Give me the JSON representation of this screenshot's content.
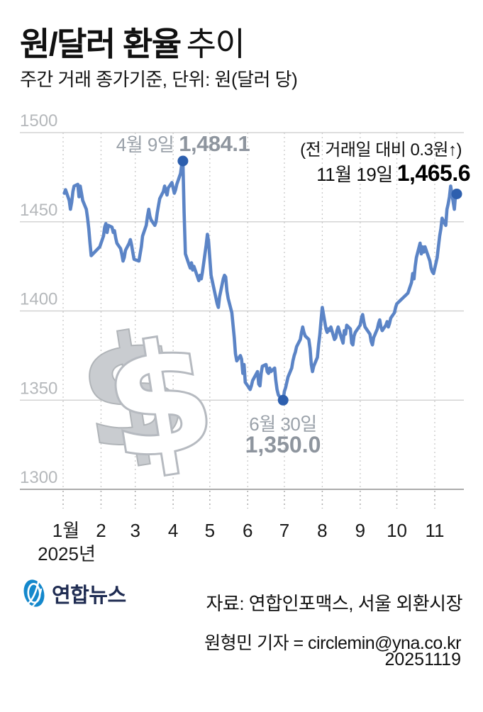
{
  "header": {
    "title_bold": "원/달러 환율",
    "title_light": "추이",
    "subtitle": "주간 거래 종가기준, 단위: 원(달러 당)"
  },
  "chart": {
    "annotations": {
      "peak_date": "4월 9일",
      "peak_value": "1,484.1",
      "prev_day_note": "(전 거래일 대비 0.3원↑)",
      "latest_date": "11월 19일",
      "latest_value": "1,465.6",
      "min_date": "6월 30일",
      "min_value": "1,350.0"
    },
    "watermark_symbol": "$",
    "colors": {
      "line": "#5b84c6",
      "marker": "#2d5fae",
      "grid": "#cbcbcb",
      "bottom_axis": "#8f8f8f",
      "gray_text": "#969da6",
      "y_label": "#b5b8bb",
      "logo_blue": "#1488cc",
      "logo_navy": "#1f2c52"
    }
  },
  "chart_data": {
    "type": "line",
    "title": "원/달러 환율 추이",
    "subtitle": "주간 거래 종가기준, 단위: 원(달러 당)",
    "x_unit": "day_of_year_2025",
    "x_tick_labels": [
      "1월",
      "2",
      "3",
      "4",
      "5",
      "6",
      "7",
      "8",
      "9",
      "10",
      "11"
    ],
    "year_label": "2025년",
    "y_ticks": [
      1500,
      1450,
      1400,
      1350,
      1300
    ],
    "ylim": [
      1300,
      1500
    ],
    "grid": true,
    "points": [
      [
        2,
        1466
      ],
      [
        3,
        1468
      ],
      [
        6,
        1462
      ],
      [
        7,
        1457
      ],
      [
        8,
        1461
      ],
      [
        9,
        1467
      ],
      [
        10,
        1470
      ],
      [
        13,
        1471
      ],
      [
        14,
        1464
      ],
      [
        15,
        1470
      ],
      [
        16,
        1466
      ],
      [
        17,
        1462
      ],
      [
        20,
        1457
      ],
      [
        21,
        1452
      ],
      [
        22,
        1446
      ],
      [
        23,
        1438
      ],
      [
        24,
        1431
      ],
      [
        31,
        1436
      ],
      [
        34,
        1442
      ],
      [
        35,
        1447
      ],
      [
        36,
        1449
      ],
      [
        37,
        1444
      ],
      [
        38,
        1448
      ],
      [
        41,
        1447
      ],
      [
        42,
        1444
      ],
      [
        43,
        1445
      ],
      [
        44,
        1441
      ],
      [
        45,
        1438
      ],
      [
        48,
        1435
      ],
      [
        49,
        1432
      ],
      [
        50,
        1428
      ],
      [
        51,
        1430
      ],
      [
        52,
        1434
      ],
      [
        55,
        1438
      ],
      [
        56,
        1440
      ],
      [
        57,
        1437
      ],
      [
        58,
        1433
      ],
      [
        59,
        1429
      ],
      [
        63,
        1428
      ],
      [
        64,
        1432
      ],
      [
        65,
        1436
      ],
      [
        66,
        1442
      ],
      [
        69,
        1448
      ],
      [
        70,
        1453
      ],
      [
        71,
        1457
      ],
      [
        72,
        1453
      ],
      [
        73,
        1451
      ],
      [
        76,
        1448
      ],
      [
        77,
        1450
      ],
      [
        78,
        1455
      ],
      [
        79,
        1459
      ],
      [
        80,
        1463
      ],
      [
        83,
        1467
      ],
      [
        84,
        1470
      ],
      [
        85,
        1467
      ],
      [
        86,
        1465
      ],
      [
        87,
        1469
      ],
      [
        90,
        1472
      ],
      [
        91,
        1469
      ],
      [
        92,
        1466
      ],
      [
        93,
        1468
      ],
      [
        94,
        1471
      ],
      [
        97,
        1477
      ],
      [
        98,
        1482
      ],
      [
        99,
        1484.1
      ],
      [
        100,
        1455
      ],
      [
        101,
        1432
      ],
      [
        104,
        1426
      ],
      [
        105,
        1424
      ],
      [
        106,
        1427
      ],
      [
        107,
        1423
      ],
      [
        108,
        1425
      ],
      [
        111,
        1419
      ],
      [
        112,
        1417
      ],
      [
        113,
        1420
      ],
      [
        114,
        1418
      ],
      [
        115,
        1422
      ],
      [
        118,
        1437
      ],
      [
        119,
        1443
      ],
      [
        120,
        1439
      ],
      [
        122,
        1420
      ],
      [
        127,
        1404
      ],
      [
        128,
        1402
      ],
      [
        129,
        1408
      ],
      [
        132,
        1418
      ],
      [
        133,
        1420
      ],
      [
        134,
        1419
      ],
      [
        135,
        1411
      ],
      [
        136,
        1407
      ],
      [
        139,
        1399
      ],
      [
        140,
        1392
      ],
      [
        141,
        1385
      ],
      [
        142,
        1376
      ],
      [
        143,
        1372
      ],
      [
        146,
        1375
      ],
      [
        147,
        1373
      ],
      [
        148,
        1365
      ],
      [
        149,
        1370
      ],
      [
        150,
        1360
      ],
      [
        153,
        1357
      ],
      [
        154,
        1356
      ],
      [
        155,
        1358
      ],
      [
        156,
        1361
      ],
      [
        160,
        1366
      ],
      [
        161,
        1359
      ],
      [
        162,
        1358
      ],
      [
        163,
        1365
      ],
      [
        164,
        1369
      ],
      [
        167,
        1370
      ],
      [
        168,
        1366
      ],
      [
        169,
        1365
      ],
      [
        170,
        1368
      ],
      [
        171,
        1366
      ],
      [
        174,
        1368
      ],
      [
        175,
        1361
      ],
      [
        176,
        1356
      ],
      [
        177,
        1353
      ],
      [
        178,
        1352
      ],
      [
        181,
        1350.0
      ],
      [
        182,
        1355
      ],
      [
        183,
        1357
      ],
      [
        184,
        1360
      ],
      [
        185,
        1363
      ],
      [
        188,
        1368
      ],
      [
        189,
        1372
      ],
      [
        190,
        1375
      ],
      [
        191,
        1377
      ],
      [
        192,
        1380
      ],
      [
        195,
        1384
      ],
      [
        196,
        1388
      ],
      [
        197,
        1391
      ],
      [
        198,
        1388
      ],
      [
        199,
        1386
      ],
      [
        202,
        1384
      ],
      [
        203,
        1379
      ],
      [
        204,
        1370
      ],
      [
        205,
        1366
      ],
      [
        206,
        1369
      ],
      [
        209,
        1374
      ],
      [
        210,
        1381
      ],
      [
        211,
        1387
      ],
      [
        212,
        1395
      ],
      [
        213,
        1402
      ],
      [
        216,
        1390
      ],
      [
        217,
        1388
      ],
      [
        218,
        1390
      ],
      [
        219,
        1389
      ],
      [
        220,
        1391
      ],
      [
        223,
        1384
      ],
      [
        224,
        1385
      ],
      [
        225,
        1389
      ],
      [
        226,
        1391
      ],
      [
        229,
        1384
      ],
      [
        230,
        1382
      ],
      [
        231,
        1389
      ],
      [
        232,
        1387
      ],
      [
        233,
        1392
      ],
      [
        236,
        1390
      ],
      [
        237,
        1382
      ],
      [
        238,
        1381
      ],
      [
        239,
        1386
      ],
      [
        240,
        1388
      ],
      [
        244,
        1392
      ],
      [
        245,
        1396
      ],
      [
        246,
        1398
      ],
      [
        247,
        1394
      ],
      [
        248,
        1391
      ],
      [
        251,
        1388
      ],
      [
        252,
        1387
      ],
      [
        253,
        1383
      ],
      [
        254,
        1381
      ],
      [
        255,
        1385
      ],
      [
        258,
        1390
      ],
      [
        259,
        1393
      ],
      [
        260,
        1395
      ],
      [
        261,
        1391
      ],
      [
        262,
        1389
      ],
      [
        265,
        1392
      ],
      [
        266,
        1394
      ],
      [
        267,
        1391
      ],
      [
        268,
        1393
      ],
      [
        269,
        1396
      ],
      [
        272,
        1399
      ],
      [
        273,
        1402
      ],
      [
        274,
        1404
      ],
      [
        283,
        1410
      ],
      [
        286,
        1416
      ],
      [
        287,
        1421
      ],
      [
        288,
        1418
      ],
      [
        289,
        1425
      ],
      [
        290,
        1430
      ],
      [
        293,
        1438
      ],
      [
        294,
        1432
      ],
      [
        295,
        1436
      ],
      [
        296,
        1433
      ],
      [
        297,
        1436
      ],
      [
        300,
        1430
      ],
      [
        301,
        1428
      ],
      [
        302,
        1424
      ],
      [
        303,
        1422
      ],
      [
        304,
        1421
      ],
      [
        307,
        1430
      ],
      [
        308,
        1436
      ],
      [
        309,
        1442
      ],
      [
        310,
        1446
      ],
      [
        311,
        1452
      ],
      [
        314,
        1448
      ],
      [
        315,
        1457
      ],
      [
        316,
        1460
      ],
      [
        317,
        1464
      ],
      [
        318,
        1470
      ],
      [
        321,
        1457
      ],
      [
        322,
        1465.3
      ],
      [
        323,
        1465.6
      ]
    ],
    "highlights": [
      {
        "day": 99,
        "value": 1484.1,
        "label": "4월 9일 1,484.1"
      },
      {
        "day": 181,
        "value": 1350.0,
        "label": "6월 30일 1,350.0"
      },
      {
        "day": 323,
        "value": 1465.6,
        "label": "11월 19일 1,465.6 (전 거래일 대비 0.3원↑)"
      }
    ],
    "legend": []
  },
  "footer": {
    "logo_text": "연합뉴스",
    "source": "자료: 연합인포맥스, 서울 외환시장",
    "reporter": "원형민 기자 = circlemin@yna.co.kr",
    "date_code": "20251119"
  }
}
